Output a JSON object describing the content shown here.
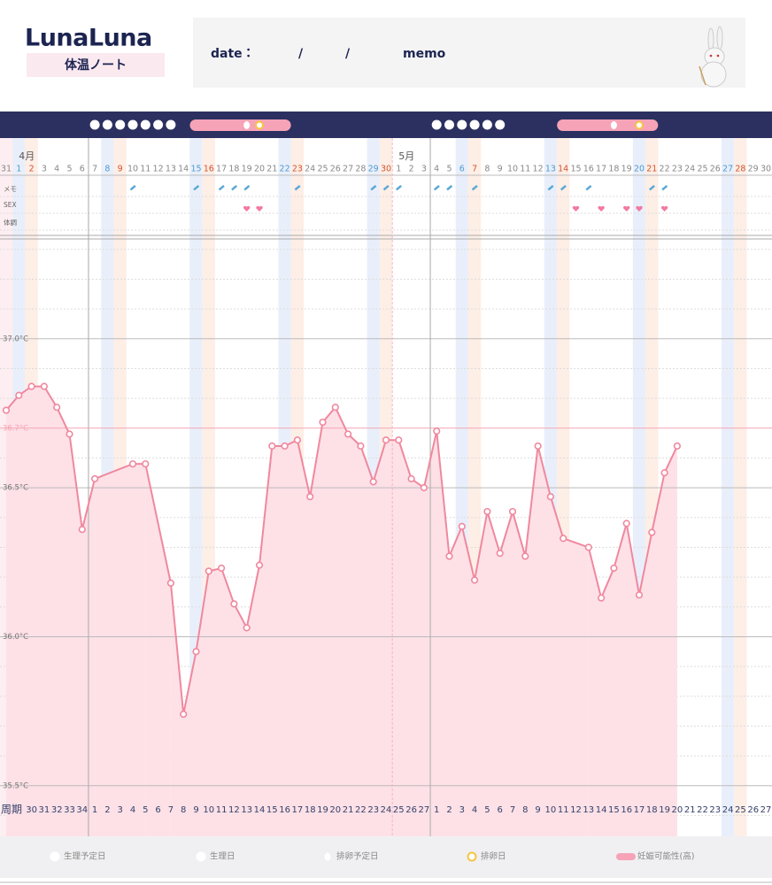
{
  "header": {
    "logo": "LunaLuna",
    "subtitle": "体温ノート",
    "date_label": "date：",
    "slash_1": "/",
    "slash_2": "/",
    "memo_label": "memo"
  },
  "chart_data": {
    "type": "line",
    "months": [
      "4月",
      "5月"
    ],
    "row_labels": [
      "メモ",
      "SEX",
      "体調"
    ],
    "cycle_label": "周期",
    "categories": [
      31,
      1,
      2,
      3,
      4,
      5,
      6,
      7,
      8,
      9,
      10,
      11,
      12,
      13,
      14,
      15,
      16,
      17,
      18,
      19,
      20,
      21,
      22,
      23,
      24,
      25,
      26,
      27,
      28,
      29,
      30,
      1,
      2,
      3,
      4,
      5,
      6,
      7,
      8,
      9,
      10,
      11,
      12,
      13,
      14,
      15,
      16,
      17,
      18,
      19,
      20,
      21,
      22,
      23,
      24,
      25,
      26,
      27,
      28,
      29,
      30
    ],
    "cycle_days": [
      null,
      null,
      30,
      31,
      32,
      33,
      34,
      1,
      2,
      3,
      4,
      5,
      6,
      7,
      8,
      9,
      10,
      11,
      12,
      13,
      14,
      15,
      16,
      17,
      18,
      19,
      20,
      21,
      22,
      23,
      24,
      25,
      26,
      27,
      1,
      2,
      3,
      4,
      5,
      6,
      7,
      8,
      9,
      10,
      11,
      12,
      13,
      14,
      15,
      16,
      17,
      18,
      19,
      20,
      21,
      22,
      23,
      24,
      25,
      26,
      27
    ],
    "values": [
      36.76,
      36.81,
      36.84,
      36.84,
      36.77,
      36.68,
      36.36,
      36.53,
      null,
      null,
      36.58,
      36.58,
      null,
      36.18,
      35.74,
      35.95,
      36.22,
      36.23,
      36.11,
      36.03,
      36.24,
      36.64,
      36.64,
      36.66,
      36.47,
      36.72,
      36.77,
      36.68,
      36.64,
      36.52,
      36.66,
      36.66,
      36.53,
      36.5,
      36.69,
      36.27,
      36.37,
      36.19,
      36.42,
      36.28,
      36.42,
      36.27,
      36.64,
      36.47,
      36.33,
      null,
      36.3,
      36.13,
      36.23,
      36.38,
      36.14,
      36.35,
      36.55,
      36.64,
      null,
      null,
      null,
      null,
      null,
      null,
      null
    ],
    "color": "#f0889e",
    "area_color": "#fde1e7",
    "ylim": [
      35.33,
      37.335
    ],
    "yticks": [
      {
        "value": 35.5,
        "label": "35.5°C"
      },
      {
        "value": 36.0,
        "label": "36.0°C"
      },
      {
        "value": 36.5,
        "label": "36.5°C"
      },
      {
        "value": 37.0,
        "label": "37.0°C"
      }
    ],
    "minor_yticks": [
      35.4,
      35.6,
      35.7,
      35.8,
      35.9,
      36.1,
      36.2,
      36.3,
      36.4,
      36.6,
      36.8,
      36.9,
      37.1,
      37.2,
      37.3
    ],
    "reference": {
      "value": 36.7,
      "label": "36.7°C"
    },
    "grid": true,
    "legend": [
      "生理予定日",
      "生理日",
      "排卵予定日",
      "排卵日",
      "妊娠可能性(高)"
    ]
  }
}
